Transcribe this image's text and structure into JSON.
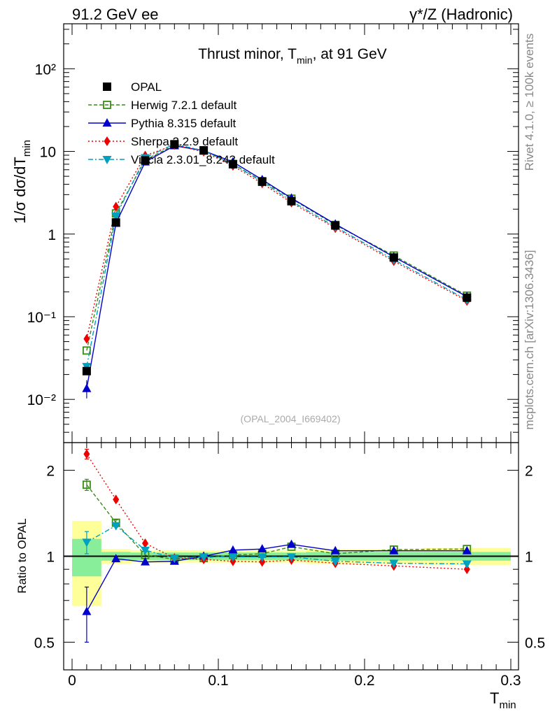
{
  "header": {
    "left": "91.2 GeV ee",
    "right": "γ*/Z (Hadronic)"
  },
  "side_labels": {
    "rivet": "Rivet 4.1.0, ≥ 100k events",
    "mcplots": "mcplots.cern.ch [arXiv:1306.3436]"
  },
  "chart_data": {
    "type": "line",
    "title": "Thrust minor, T_min, at 91 GeV",
    "title_main": "Thrust minor, T",
    "title_sub": "min",
    "title_tail": ", at 91 GeV",
    "watermark": "(OPAL_2004_I669402)",
    "xlabel": "T",
    "xlabel_sub": "min",
    "ylabel": "1/σ  dσ/dT",
    "ylabel_sub": "min",
    "ratio_ylabel": "Ratio to OPAL",
    "xlim": [
      0,
      0.3
    ],
    "ylim": [
      0.003,
      350
    ],
    "ratio_ylim": [
      0.4,
      2.5
    ],
    "x_ticks": [
      "0",
      "0.1",
      "0.2",
      "0.3"
    ],
    "y_ticks": [
      "10⁻²",
      "10⁻¹",
      "1",
      "10",
      "10²"
    ],
    "ratio_ticks": [
      "0.5",
      "1",
      "2"
    ],
    "x": [
      0.01,
      0.03,
      0.05,
      0.07,
      0.09,
      0.11,
      0.13,
      0.15,
      0.18,
      0.22,
      0.27
    ],
    "bin_edges": [
      0,
      0.02,
      0.04,
      0.06,
      0.08,
      0.1,
      0.12,
      0.14,
      0.16,
      0.2,
      0.24,
      0.3
    ],
    "data": {
      "name": "OPAL",
      "values": [
        0.022,
        1.38,
        7.8,
        12.2,
        10.3,
        7.0,
        4.3,
        2.5,
        1.27,
        0.52,
        0.17
      ],
      "ratio_band_inner": [
        0.15,
        0.035,
        0.03,
        0.03,
        0.03,
        0.03,
        0.03,
        0.03,
        0.035,
        0.035,
        0.035
      ],
      "ratio_band_outer": [
        0.33,
        0.06,
        0.05,
        0.05,
        0.05,
        0.05,
        0.05,
        0.05,
        0.06,
        0.06,
        0.07
      ]
    },
    "series": [
      {
        "name": "Herwig 7.2.1 default",
        "color": "#3a8a1a",
        "dash": "5,3",
        "marker": "open-square",
        "values": [
          0.039,
          1.78,
          7.9,
          11.9,
          10.2,
          7.05,
          4.38,
          2.68,
          1.29,
          0.55,
          0.18
        ],
        "ratio": [
          1.78,
          1.31,
          1.01,
          0.975,
          0.985,
          1.01,
          1.02,
          1.08,
          1.02,
          1.055,
          1.06
        ],
        "ratio_err": [
          0.08,
          0.03,
          0.02,
          0.02,
          0.02,
          0.02,
          0.02,
          0.02,
          0.02,
          0.02,
          0.02
        ]
      },
      {
        "name": "Pythia 8.315 default",
        "color": "#0000cc",
        "dash": "",
        "marker": "triangle-up",
        "values": [
          0.0135,
          1.35,
          7.45,
          11.7,
          10.2,
          7.45,
          4.55,
          2.72,
          1.32,
          0.53,
          0.175
        ],
        "ratio": [
          0.64,
          0.98,
          0.955,
          0.96,
          1.0,
          1.05,
          1.06,
          1.1,
          1.045,
          1.045,
          1.045
        ],
        "ratio_err": [
          0.14,
          0.02,
          0.015,
          0.015,
          0.015,
          0.015,
          0.015,
          0.02,
          0.02,
          0.02,
          0.02
        ]
      },
      {
        "name": "Sherpa 2.2.9 default",
        "color": "#ee0000",
        "dash": "2,3",
        "marker": "diamond",
        "values": [
          0.054,
          2.15,
          8.9,
          11.95,
          9.9,
          6.7,
          4.1,
          2.4,
          1.18,
          0.47,
          0.155
        ],
        "ratio": [
          2.28,
          1.58,
          1.11,
          0.985,
          0.975,
          0.96,
          0.955,
          0.97,
          0.945,
          0.925,
          0.9
        ],
        "ratio_err": [
          0.09,
          0.02,
          0.015,
          0.015,
          0.015,
          0.015,
          0.015,
          0.015,
          0.015,
          0.015,
          0.015
        ]
      },
      {
        "name": "Vincia 2.3.01_8.243 default",
        "color": "#00a0c0",
        "dash": "7,3,2,3",
        "marker": "triangle-down",
        "values": [
          0.025,
          1.65,
          8.4,
          12.3,
          10.2,
          7.0,
          4.3,
          2.5,
          1.22,
          0.49,
          0.16
        ],
        "ratio": [
          1.12,
          1.28,
          1.05,
          0.985,
          0.995,
          0.995,
          0.995,
          0.995,
          0.96,
          0.945,
          0.94
        ],
        "ratio_err": [
          0.1,
          0.02,
          0.015,
          0.015,
          0.015,
          0.015,
          0.015,
          0.015,
          0.015,
          0.015,
          0.015
        ]
      }
    ]
  }
}
